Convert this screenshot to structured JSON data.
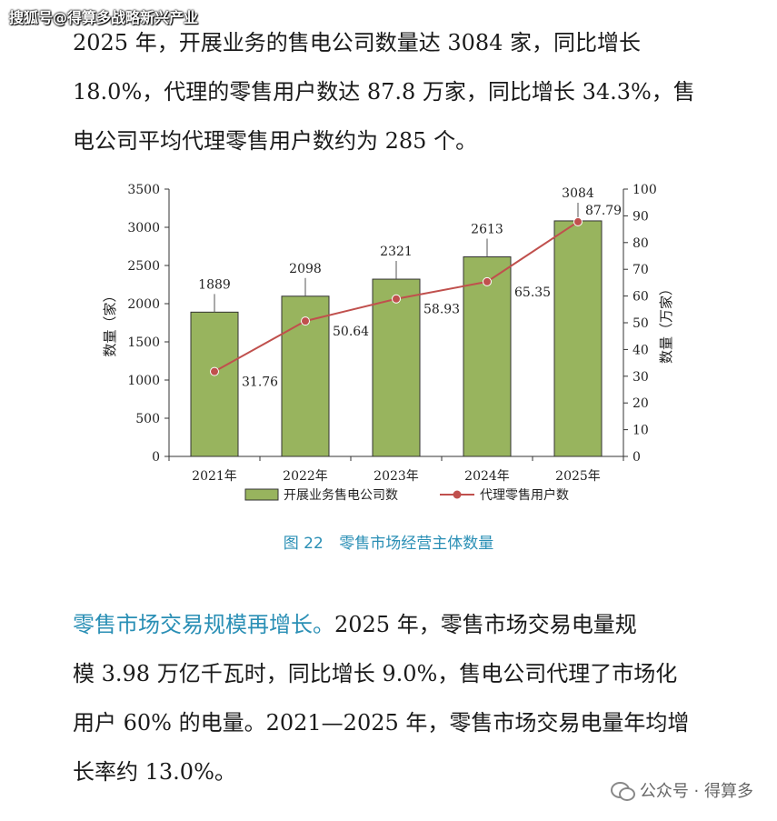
{
  "watermark_top": "搜狐号@得算多战略新兴产业",
  "paragraph_1": {
    "lines": [
      "2025 年，开展业务的售电公司数量达 3084 家，同比增长",
      "18.0%，代理的零售用户数达 87.8 万家，同比增长 34.3%，售",
      "电公司平均代理零售用户数约为 285 个。"
    ]
  },
  "chart_data": {
    "type": "bar",
    "categories": [
      "2021年",
      "2022年",
      "2023年",
      "2024年",
      "2025年"
    ],
    "series": [
      {
        "name": "开展业务售电公司数",
        "type": "bar",
        "axis": "left",
        "values": [
          1889,
          2098,
          2321,
          2613,
          3084
        ],
        "color": "#98b45e"
      },
      {
        "name": "代理零售用户数",
        "type": "line",
        "axis": "right",
        "values": [
          31.76,
          50.64,
          58.93,
          65.35,
          87.79
        ],
        "color": "#c0504d"
      }
    ],
    "ylabel": "数量（家）",
    "y2label": "数量（万家）",
    "ylim": [
      0,
      3500
    ],
    "y2lim": [
      0,
      100
    ],
    "yticks": [
      "0",
      "500",
      "1000",
      "1500",
      "2000",
      "2500",
      "3000",
      "3500"
    ],
    "y2ticks": [
      "0",
      "10",
      "20",
      "30",
      "40",
      "50",
      "60",
      "70",
      "80",
      "90",
      "100"
    ],
    "bar_labels": [
      "1889",
      "2098",
      "2321",
      "2613",
      "3084"
    ],
    "line_labels": [
      "31.76",
      "50.64",
      "58.93",
      "65.35",
      "87.79"
    ],
    "legend_position": "bottom",
    "grid": false
  },
  "caption": {
    "number": "图 22",
    "title": "零售市场经营主体数量"
  },
  "paragraph_2": {
    "lead": "零售市场交易规模再增长。",
    "lines": [
      "2025 年，零售市场交易电量规",
      "模 3.98 万亿千瓦时，同比增长 9.0%，售电公司代理了市场化",
      "用户 60% 的电量。2021—2025 年，零售市场交易电量年均增",
      "长率约 13.0%。"
    ]
  },
  "watermark_bottom": "公众号 · 得算多",
  "icons": {
    "wechat": "wechat-icon"
  }
}
